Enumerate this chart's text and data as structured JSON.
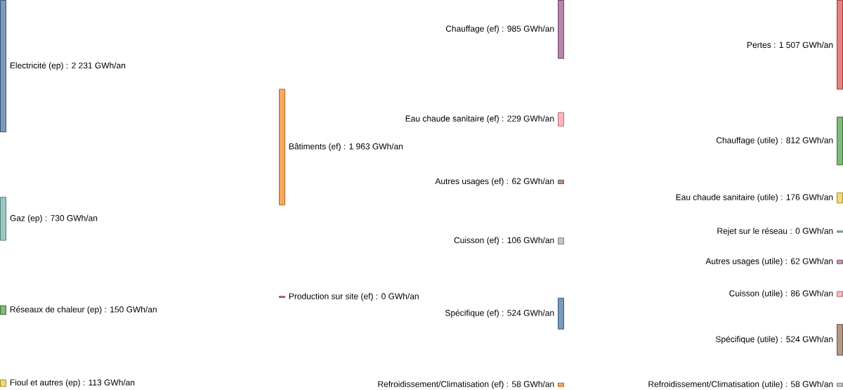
{
  "chart_data": [
    {
      "type": "other",
      "categories": [
        "Electricité (ep)",
        "Gaz (ep)",
        "Réseaux de chaleur (ep)",
        "Fioul et autres (ep)"
      ],
      "values": [
        2231,
        730,
        150,
        113
      ],
      "value_labels": [
        ": 2 231 GWh/an",
        ": 730 GWh/an",
        ": 150 GWh/an",
        ": 113 GWh/an"
      ],
      "colors": [
        "#4e79a7",
        "#76b7b2",
        "#59a14f",
        "#edc948"
      ]
    },
    {
      "type": "other",
      "categories": [
        "Bâtiments (ef)",
        "Production sur site (ef)"
      ],
      "values": [
        1963,
        0
      ],
      "value_labels": [
        ": 1 963 GWh/an",
        ": 0 GWh/an"
      ],
      "colors": [
        "#f28e2b",
        "#e15759"
      ]
    },
    {
      "type": "other",
      "categories": [
        "Chauffage (ef)",
        "Eau chaude sanitaire (ef)",
        "Autres usages (ef)",
        "Cuisson (ef)",
        "Spécifique (ef)",
        "Refroidissement/Climatisation (ef)"
      ],
      "values": [
        985,
        229,
        62,
        106,
        524,
        58
      ],
      "value_labels": [
        ": 985 GWh/an",
        ": 229 GWh/an",
        ": 62 GWh/an",
        ": 106 GWh/an",
        ": 524 GWh/an",
        ": 58 GWh/an"
      ],
      "colors": [
        "#a05d8f",
        "#ff9da7",
        "#9c755f",
        "#bab0ac",
        "#4e79a7",
        "#f28e2b"
      ]
    },
    {
      "type": "other",
      "categories": [
        "Pertes",
        "Chauffage (utile)",
        "Eau chaude sanitaire (utile)",
        "Rejet sur le réseau",
        "Autres usages (utile)",
        "Cuisson (utile)",
        "Spécifique (utile)",
        "Refroidissement/Climatisation (utile)"
      ],
      "values": [
        1507,
        812,
        176,
        0,
        62,
        86,
        524,
        58
      ],
      "value_labels": [
        ": 1 507 GWh/an",
        ": 812 GWh/an",
        ": 176 GWh/an",
        ": 0 GWh/an",
        ": 62 GWh/an",
        ": 86 GWh/an",
        ": 524 GWh/an",
        ": 58 GWh/an"
      ],
      "colors": [
        "#e15759",
        "#59a14f",
        "#edc948",
        "#76b7b2",
        "#b07aa1",
        "#ff9da7",
        "#9c755f",
        "#bab0ac"
      ]
    }
  ]
}
